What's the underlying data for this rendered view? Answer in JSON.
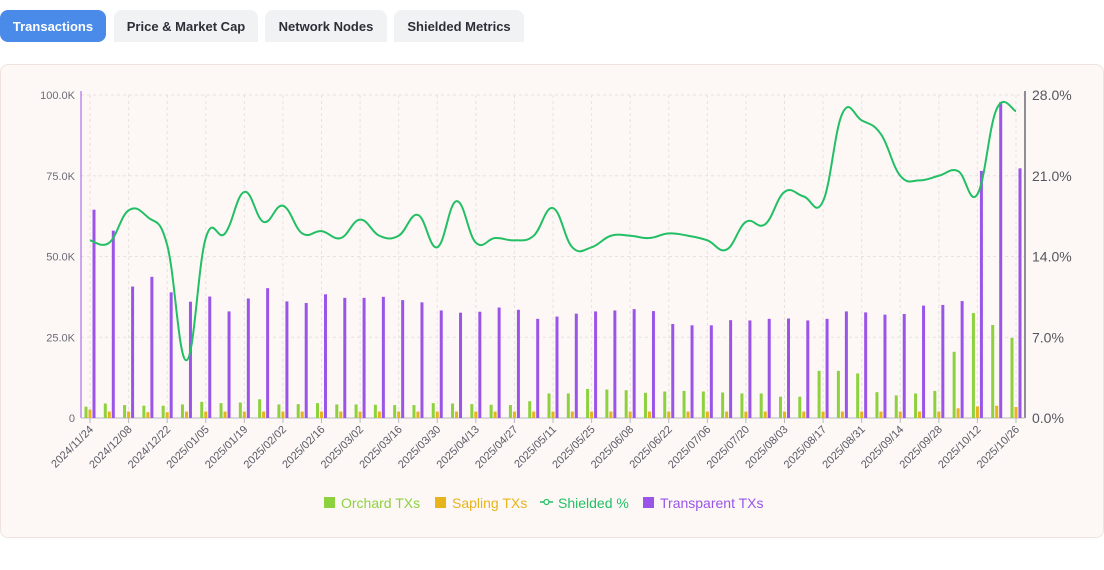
{
  "tabs": [
    {
      "label": "Transactions",
      "active": true
    },
    {
      "label": "Price & Market Cap",
      "active": false
    },
    {
      "label": "Network Nodes",
      "active": false
    },
    {
      "label": "Shielded Metrics",
      "active": false
    }
  ],
  "colors": {
    "orchard": "#8dd13f",
    "sapling": "#e7b41c",
    "shielded": "#22bf64",
    "transparent": "#9a55e8",
    "tab_active": "#4a8bea"
  },
  "chart_data": {
    "type": "bar",
    "x": [
      "2024/11/24",
      "2024/12/01",
      "2024/12/08",
      "2024/12/15",
      "2024/12/22",
      "2024/12/29",
      "2025/01/05",
      "2025/01/12",
      "2025/01/19",
      "2025/01/26",
      "2025/02/02",
      "2025/02/09",
      "2025/02/16",
      "2025/02/23",
      "2025/03/02",
      "2025/03/09",
      "2025/03/16",
      "2025/03/23",
      "2025/03/30",
      "2025/04/06",
      "2025/04/13",
      "2025/04/20",
      "2025/04/27",
      "2025/05/04",
      "2025/05/11",
      "2025/05/18",
      "2025/05/25",
      "2025/06/01",
      "2025/06/08",
      "2025/06/15",
      "2025/06/22",
      "2025/06/29",
      "2025/07/06",
      "2025/07/13",
      "2025/07/20",
      "2025/07/27",
      "2025/08/03",
      "2025/08/10",
      "2025/08/17",
      "2025/08/24",
      "2025/08/31",
      "2025/09/07",
      "2025/09/14",
      "2025/09/21",
      "2025/09/28",
      "2025/10/05",
      "2025/10/12",
      "2025/10/19",
      "2025/10/26"
    ],
    "x_tick_labels": [
      "2024/11/24",
      "2024/12/08",
      "2024/12/22",
      "2025/01/05",
      "2025/01/19",
      "2025/02/02",
      "2025/02/16",
      "2025/03/02",
      "2025/03/16",
      "2025/03/30",
      "2025/04/13",
      "2025/04/27",
      "2025/05/11",
      "2025/05/25",
      "2025/06/08",
      "2025/06/22",
      "2025/07/06",
      "2025/07/20",
      "2025/08/03",
      "2025/08/17",
      "2025/08/31",
      "2025/09/14",
      "2025/09/28",
      "2025/10/12",
      "2025/10/26"
    ],
    "series": [
      {
        "name": "Orchard TXs",
        "type": "bar",
        "axis": "left",
        "values": [
          3500,
          4500,
          4000,
          3800,
          3800,
          4200,
          5000,
          4600,
          4800,
          5800,
          4200,
          4300,
          4600,
          4200,
          4200,
          4100,
          4000,
          4000,
          4600,
          4500,
          4300,
          4100,
          4000,
          5200,
          7600,
          7600,
          9000,
          8800,
          8600,
          7800,
          8200,
          8400,
          8200,
          7900,
          7600,
          7600,
          6600,
          6600,
          14600,
          14600,
          13800,
          8000,
          7000,
          7600,
          8400,
          20500,
          32500,
          28800,
          24800
        ]
      },
      {
        "name": "Sapling TXs",
        "type": "bar",
        "axis": "left",
        "values": [
          2600,
          2000,
          2000,
          1800,
          1800,
          2000,
          2000,
          2000,
          2000,
          2000,
          2000,
          2000,
          2000,
          2000,
          2000,
          2000,
          2000,
          2000,
          2000,
          2000,
          2000,
          2000,
          2000,
          2000,
          2000,
          2000,
          2000,
          2000,
          2000,
          2000,
          2000,
          2000,
          2000,
          2000,
          2000,
          2000,
          2000,
          2000,
          2000,
          2000,
          2000,
          2000,
          2000,
          2000,
          2000,
          3000,
          3600,
          3800,
          3400
        ]
      },
      {
        "name": "Transparent TXs",
        "type": "bar",
        "axis": "left",
        "values": [
          64500,
          58000,
          40700,
          43700,
          38900,
          36000,
          37600,
          33000,
          37000,
          40200,
          36100,
          35600,
          38300,
          37200,
          37200,
          37500,
          36500,
          35800,
          33300,
          32600,
          32900,
          34200,
          33500,
          30700,
          31400,
          32300,
          33000,
          33300,
          33700,
          33100,
          29100,
          28700,
          28700,
          30300,
          30200,
          30700,
          30800,
          30200,
          30700,
          33000,
          32700,
          32000,
          32200,
          34800,
          35000,
          36200,
          76500,
          97800,
          77300
        ]
      },
      {
        "name": "Shielded %",
        "type": "line",
        "axis": "right",
        "values": [
          15.4,
          15.2,
          18.0,
          17.4,
          15.0,
          5.0,
          15.6,
          16.0,
          19.6,
          17.0,
          18.4,
          16.0,
          16.2,
          15.6,
          17.2,
          15.8,
          15.8,
          17.6,
          14.8,
          18.8,
          15.2,
          15.6,
          15.4,
          15.8,
          18.2,
          14.8,
          14.8,
          15.8,
          15.8,
          15.6,
          16.0,
          15.8,
          15.4,
          14.6,
          17.0,
          16.8,
          19.6,
          19.2,
          18.8,
          26.4,
          25.8,
          24.6,
          21.0,
          20.6,
          21.0,
          21.4,
          19.4,
          26.8,
          26.6
        ]
      }
    ],
    "left_axis": {
      "ylim": [
        0,
        100000
      ],
      "ticks": [
        "0",
        "25.0K",
        "50.0K",
        "75.0K",
        "100.0K"
      ]
    },
    "right_axis": {
      "ylim": [
        0,
        28
      ],
      "ticks": [
        "0.0%",
        "7.0%",
        "14.0%",
        "21.0%",
        "28.0%"
      ]
    },
    "legend": [
      "Orchard TXs",
      "Sapling TXs",
      "Shielded %",
      "Transparent TXs"
    ],
    "legend_position": "bottom",
    "grid": true
  }
}
